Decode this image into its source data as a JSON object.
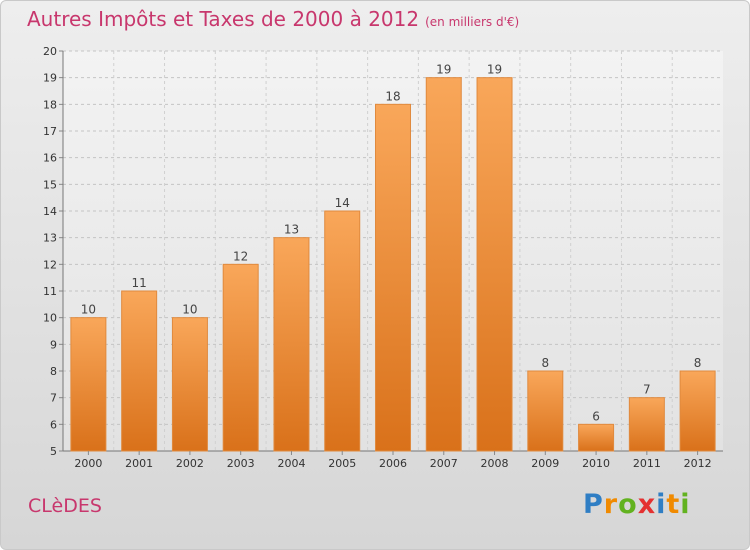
{
  "chart_data": {
    "type": "bar",
    "title": "Autres Impôts et Taxes de 2000 à 2012",
    "subtitle": "(en milliers d'€)",
    "categories": [
      "2000",
      "2001",
      "2002",
      "2003",
      "2004",
      "2005",
      "2006",
      "2007",
      "2008",
      "2009",
      "2010",
      "2011",
      "2012"
    ],
    "values": [
      10,
      11,
      10,
      12,
      13,
      14,
      18,
      19,
      19,
      8,
      6,
      7,
      8
    ],
    "ylim": [
      5,
      20
    ],
    "yticks": [
      5,
      6,
      7,
      8,
      9,
      10,
      11,
      12,
      13,
      14,
      15,
      16,
      17,
      18,
      19,
      20
    ],
    "grid": true,
    "bar_color": "#f0923a"
  },
  "commune": "CLèDES",
  "brand": {
    "letters": [
      "P",
      "r",
      "o",
      "x",
      "i",
      "t",
      "i"
    ],
    "colors": [
      "#2f7ec4",
      "#f08a00",
      "#62b21f",
      "#e43131",
      "#2f7ec4",
      "#f08a00",
      "#62b21f"
    ]
  }
}
